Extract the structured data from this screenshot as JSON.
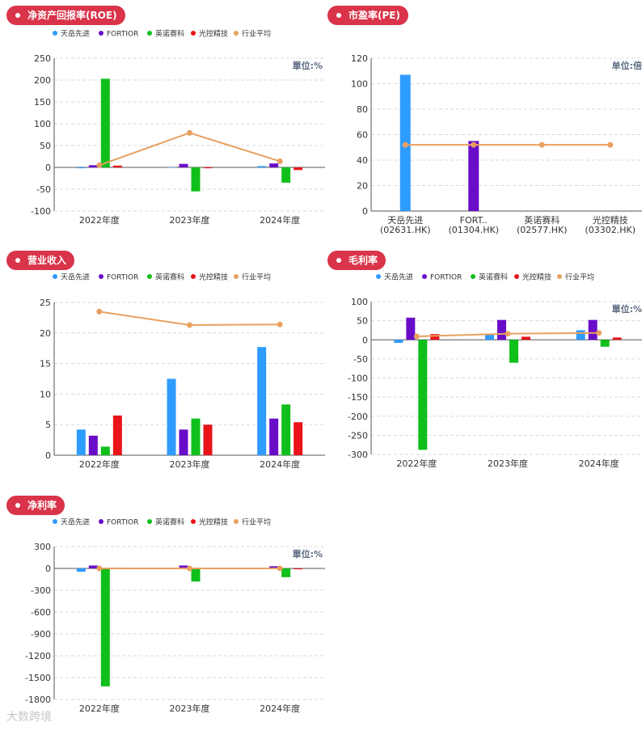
{
  "watermark": "大数跨境",
  "legend": [
    "天岳先进",
    "FORTIOR",
    "英诺赛科",
    "光控精技",
    "行业平均"
  ],
  "colors": {
    "series": [
      "#2e9bff",
      "#6a0dc8",
      "#0fbf1a",
      "#e8141a"
    ],
    "average": "#e8a060",
    "badge": "#d9344a",
    "grid": "#d9d9d9",
    "unit": "#5a6b82"
  },
  "chart_data": [
    {
      "id": "roe",
      "type": "bar",
      "title": "净资产回报率(ROE)",
      "unit": "單位:%",
      "categories": [
        "2022年度",
        "2023年度",
        "2024年度"
      ],
      "yticks": [
        -100,
        -50,
        0,
        50,
        100,
        150,
        200,
        250
      ],
      "ylim": [
        -100,
        250
      ],
      "series": [
        {
          "name": "天岳先进",
          "values": [
            -2,
            0,
            3
          ]
        },
        {
          "name": "FORTIOR",
          "values": [
            5,
            8,
            9
          ]
        },
        {
          "name": "英诺赛科",
          "values": [
            203,
            -55,
            -35
          ]
        },
        {
          "name": "光控精技",
          "values": [
            4,
            -2,
            -6
          ]
        }
      ],
      "average": {
        "name": "行业平均",
        "values": [
          5,
          79,
          14
        ]
      }
    },
    {
      "id": "pe",
      "type": "bar",
      "title": "市盈率(PE)",
      "unit": "单位:倍",
      "categories": [
        "天岳先进\n(02631.HK)",
        "FORT..\n(01304.HK)",
        "英诺赛科\n(02577.HK)",
        "光控精技\n(03302.HK)"
      ],
      "yticks": [
        0,
        20,
        40,
        60,
        80,
        100,
        120
      ],
      "ylim": [
        0,
        120
      ],
      "values": [
        107,
        55,
        0,
        0
      ],
      "average": {
        "name": "行业平均",
        "values": [
          52,
          52,
          52,
          52
        ]
      }
    },
    {
      "id": "revenue",
      "type": "bar",
      "title": "营业收入",
      "unit": "",
      "categories": [
        "2022年度",
        "2023年度",
        "2024年度"
      ],
      "yticks": [
        0,
        5,
        10,
        15,
        20,
        25
      ],
      "ylim": [
        0,
        25
      ],
      "series": [
        {
          "name": "天岳先进",
          "values": [
            4.2,
            12.5,
            17.7
          ]
        },
        {
          "name": "FORTIOR",
          "values": [
            3.2,
            4.2,
            6.0
          ]
        },
        {
          "name": "英诺赛科",
          "values": [
            1.4,
            6.0,
            8.3
          ]
        },
        {
          "name": "光控精技",
          "values": [
            6.5,
            5.0,
            5.4
          ]
        }
      ],
      "average": {
        "name": "行业平均",
        "values": [
          23.5,
          21.3,
          21.4
        ]
      }
    },
    {
      "id": "gross-margin",
      "type": "bar",
      "title": "毛利率",
      "unit": "單位:%",
      "categories": [
        "2022年度",
        "2023年度",
        "2024年度"
      ],
      "yticks": [
        -300,
        -250,
        -200,
        -150,
        -100,
        -50,
        0,
        50,
        100
      ],
      "ylim": [
        -300,
        100
      ],
      "series": [
        {
          "name": "天岳先进",
          "values": [
            -8,
            15,
            25
          ]
        },
        {
          "name": "FORTIOR",
          "values": [
            58,
            52,
            52
          ]
        },
        {
          "name": "英诺赛科",
          "values": [
            -288,
            -60,
            -18
          ]
        },
        {
          "name": "光控精技",
          "values": [
            15,
            8,
            6
          ]
        }
      ],
      "average": {
        "name": "行业平均",
        "values": [
          9,
          16,
          18
        ]
      }
    },
    {
      "id": "net-margin",
      "type": "bar",
      "title": "净利率",
      "unit": "單位:%",
      "categories": [
        "2022年度",
        "2023年度",
        "2024年度"
      ],
      "yticks": [
        -1800,
        -1500,
        -1200,
        -900,
        -600,
        -300,
        0,
        300
      ],
      "ylim": [
        -1800,
        300
      ],
      "series": [
        {
          "name": "天岳先进",
          "values": [
            -45,
            -5,
            2
          ]
        },
        {
          "name": "FORTIOR",
          "values": [
            40,
            40,
            30
          ]
        },
        {
          "name": "英诺赛科",
          "values": [
            -1620,
            -180,
            -120
          ]
        },
        {
          "name": "光控精技",
          "values": [
            12,
            10,
            -12
          ]
        }
      ],
      "average": {
        "name": "行业平均",
        "values": [
          0,
          0,
          0
        ]
      }
    }
  ]
}
